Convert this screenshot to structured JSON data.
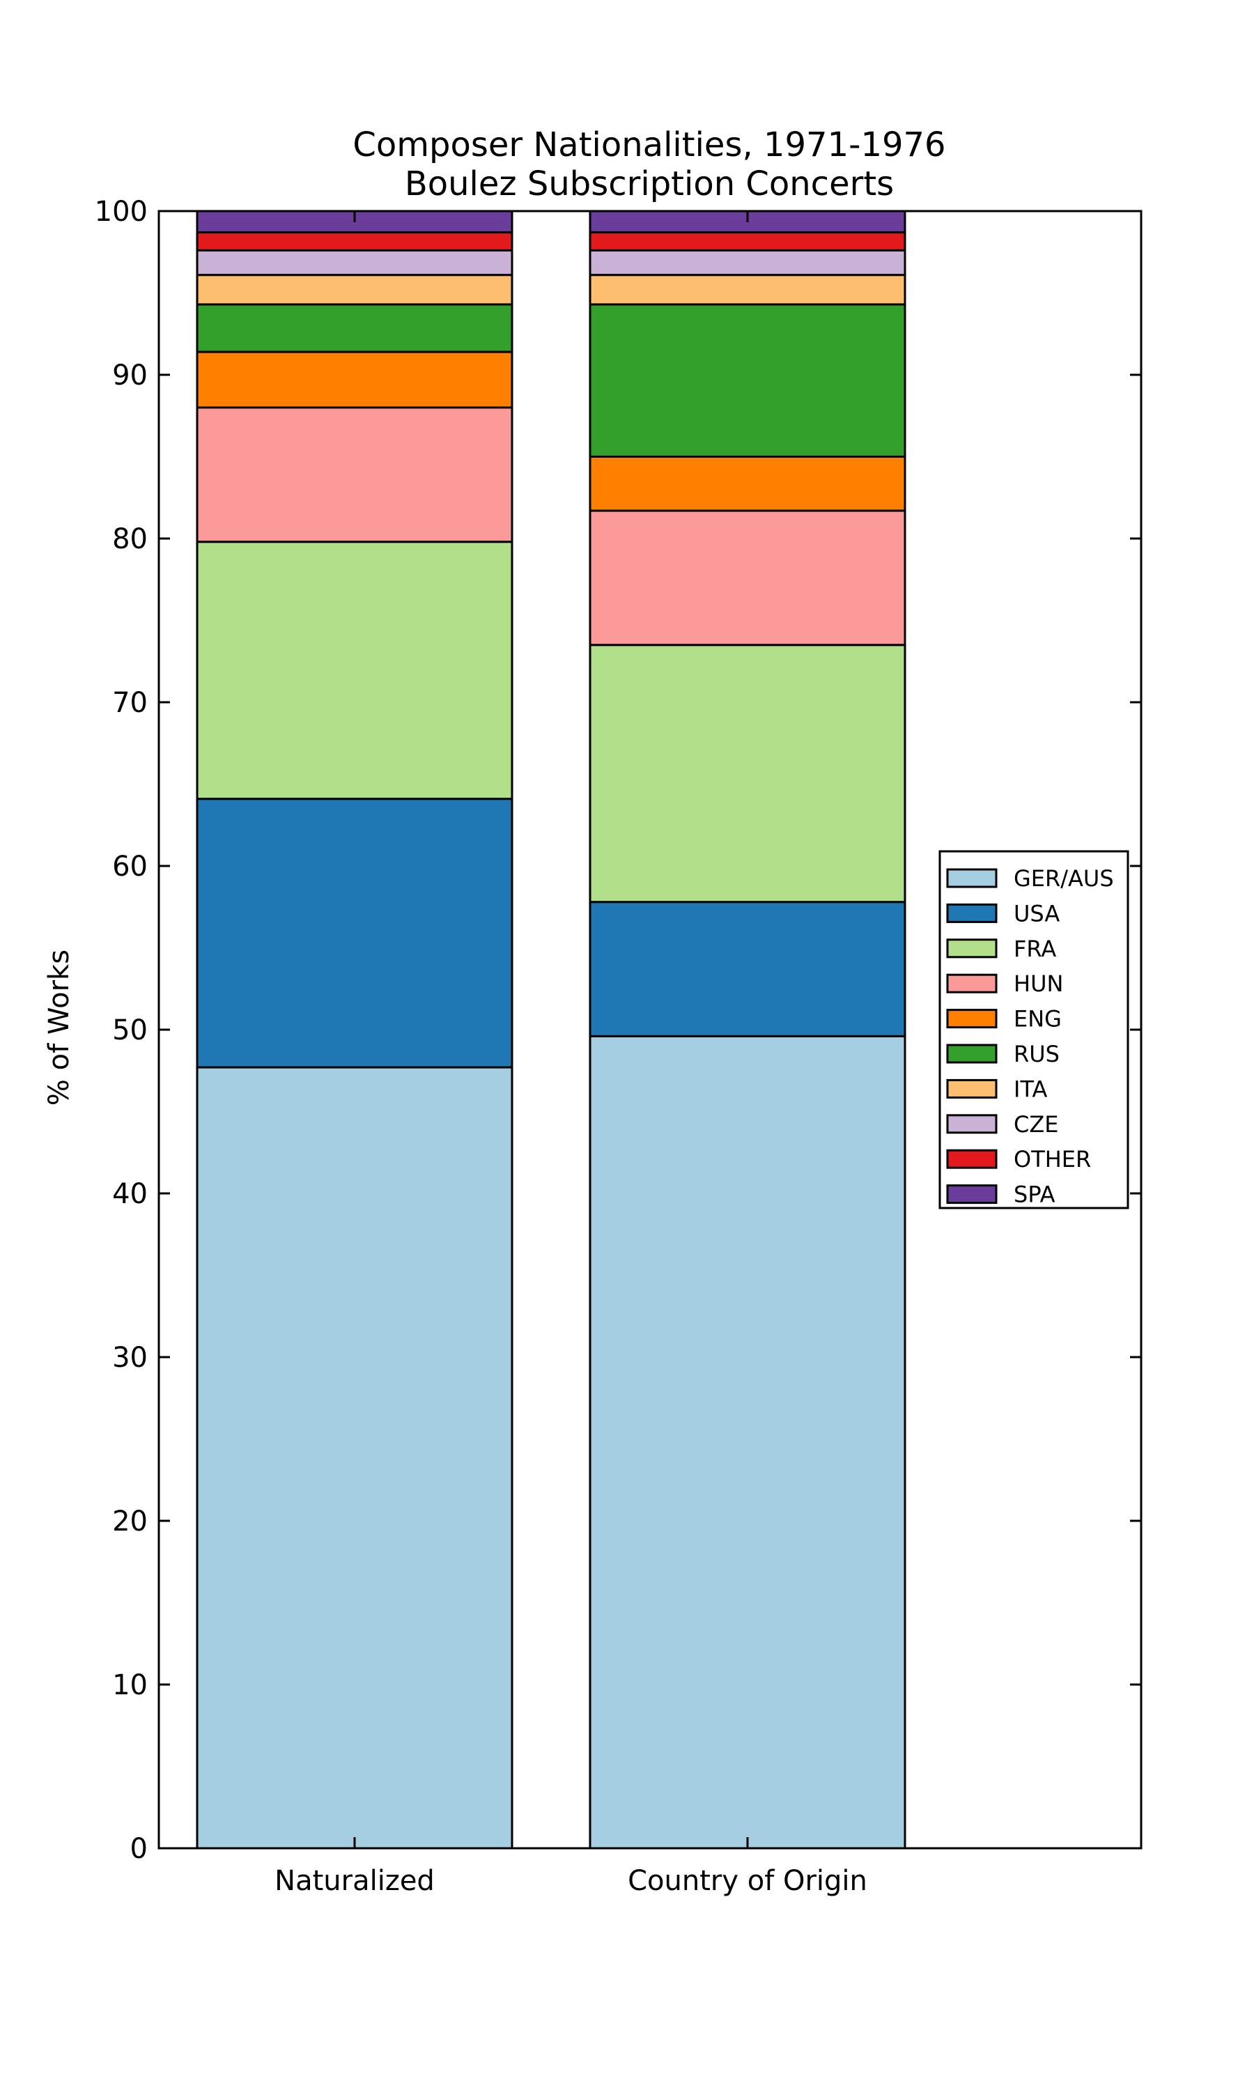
{
  "chart_data": {
    "type": "bar",
    "stacked": true,
    "title": [
      "Composer Nationalities, 1971-1976",
      "Boulez Subscription Concerts"
    ],
    "ylabel": "% of Works",
    "xlabel": "",
    "ylim": [
      0,
      100
    ],
    "yticks": [
      "0",
      "10",
      "20",
      "30",
      "40",
      "50",
      "60",
      "70",
      "80",
      "90",
      "100"
    ],
    "categories": [
      "Naturalized",
      "Country of Origin"
    ],
    "legend_position": "center-right",
    "grid": false,
    "series": [
      {
        "name": "GER/AUS",
        "color": "#a6cee3",
        "values": [
          47.7,
          49.6
        ]
      },
      {
        "name": "USA",
        "color": "#1f78b4",
        "values": [
          16.4,
          8.2
        ]
      },
      {
        "name": "FRA",
        "color": "#b2df8a",
        "values": [
          15.7,
          15.7
        ]
      },
      {
        "name": "HUN",
        "color": "#fb9a99",
        "values": [
          8.2,
          8.2
        ]
      },
      {
        "name": "ENG",
        "color": "#ff7f00",
        "values": [
          3.4,
          3.3
        ]
      },
      {
        "name": "RUS",
        "color": "#33a02c",
        "values": [
          2.9,
          9.3
        ]
      },
      {
        "name": "ITA",
        "color": "#fdbf6f",
        "values": [
          1.8,
          1.8
        ]
      },
      {
        "name": "CZE",
        "color": "#cab2d6",
        "values": [
          1.5,
          1.5
        ]
      },
      {
        "name": "OTHER",
        "color": "#e31a1c",
        "values": [
          1.1,
          1.1
        ]
      },
      {
        "name": "SPA",
        "color": "#6a3d9a",
        "values": [
          1.3,
          1.3
        ]
      }
    ]
  }
}
